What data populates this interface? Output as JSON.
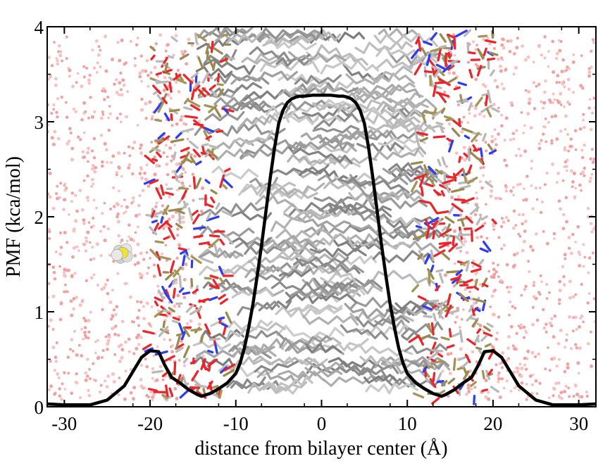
{
  "chart_data": {
    "type": "line",
    "title": "",
    "xlabel": "distance from bilayer center (Å)",
    "ylabel": "PMF (kca/mol)",
    "xlim": [
      -32,
      32
    ],
    "ylim": [
      0,
      4
    ],
    "xticks": [
      -30,
      -20,
      -10,
      0,
      10,
      20,
      30
    ],
    "yticks": [
      0,
      1,
      2,
      3,
      4
    ],
    "grid": false,
    "legend": "none",
    "background": "molecular dynamics snapshot of a lipid bilayer with water molecules and a solute molecule",
    "series": [
      {
        "color": "#000000",
        "x": [
          -32,
          -30,
          -27,
          -25,
          -23,
          -22,
          -21,
          -20,
          -19,
          -18.3,
          -17.5,
          -16.5,
          -15.5,
          -14.5,
          -14,
          -13,
          -12,
          -11,
          -10,
          -9.5,
          -9,
          -8.5,
          -8,
          -7.5,
          -7,
          -6.5,
          -6,
          -5.5,
          -5,
          -4.5,
          -4,
          -3.5,
          -3,
          -2.5,
          -2,
          -1,
          0,
          1,
          2,
          2.5,
          3,
          3.5,
          4,
          4.5,
          5,
          5.5,
          6,
          6.5,
          7,
          7.5,
          8,
          8.5,
          9,
          9.5,
          10,
          11,
          12,
          13,
          14,
          14.5,
          15.5,
          16.5,
          17.5,
          18.3,
          19,
          20,
          21,
          22,
          23,
          25,
          27,
          30,
          32
        ],
        "y": [
          0.03,
          0.02,
          0.02,
          0.07,
          0.22,
          0.37,
          0.52,
          0.59,
          0.58,
          0.44,
          0.31,
          0.25,
          0.18,
          0.13,
          0.11,
          0.14,
          0.19,
          0.25,
          0.35,
          0.46,
          0.62,
          0.83,
          1.08,
          1.38,
          1.7,
          2.05,
          2.4,
          2.72,
          2.98,
          3.12,
          3.2,
          3.24,
          3.26,
          3.27,
          3.27,
          3.28,
          3.28,
          3.28,
          3.27,
          3.27,
          3.26,
          3.24,
          3.2,
          3.12,
          2.98,
          2.72,
          2.4,
          2.05,
          1.7,
          1.38,
          1.08,
          0.83,
          0.62,
          0.46,
          0.35,
          0.25,
          0.19,
          0.14,
          0.11,
          0.13,
          0.18,
          0.25,
          0.31,
          0.44,
          0.58,
          0.59,
          0.52,
          0.37,
          0.22,
          0.07,
          0.02,
          0.02,
          0.03
        ]
      }
    ]
  }
}
